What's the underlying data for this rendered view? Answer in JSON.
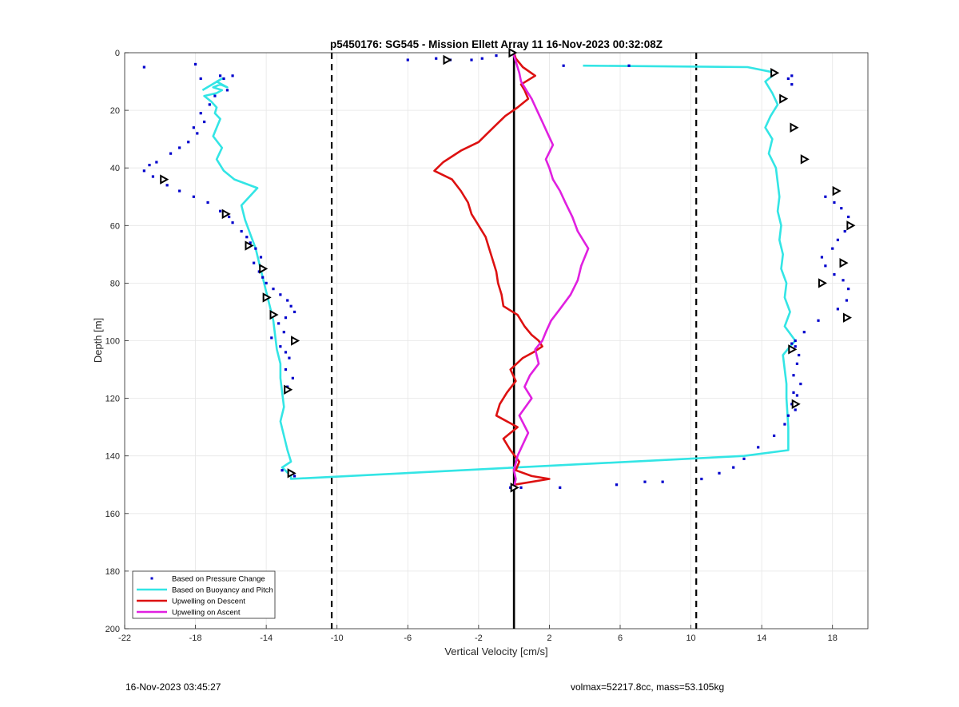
{
  "footer": {
    "timestamp": "16-Nov-2023 03:45:27",
    "volmax_mass": "volmax=52217.8cc, mass=53.105kg"
  },
  "chart_data": {
    "type": "scatter",
    "title": "p5450176: SG545 - Mission Ellett Array 11 16-Nov-2023 00:32:08Z",
    "xlabel": "Vertical Velocity [cm/s]",
    "ylabel": "Depth [m]",
    "xlim": [
      -22,
      20
    ],
    "ylim": [
      0,
      200
    ],
    "y_reversed": true,
    "grid": true,
    "xticks": [
      -22,
      -18,
      -14,
      -10,
      -6,
      -2,
      2,
      6,
      10,
      14,
      18
    ],
    "yticks": [
      0,
      20,
      40,
      60,
      80,
      100,
      120,
      140,
      160,
      180,
      200
    ],
    "legend_location": "bottom-left",
    "legend": [
      {
        "label": "Based on Pressure Change",
        "color": "#0000cc",
        "style": "dots"
      },
      {
        "label": "Based on Buoyancy and Pitch",
        "color": "#33e5e5",
        "style": "line"
      },
      {
        "label": "Upwelling on Descent",
        "color": "#dd1111",
        "style": "line"
      },
      {
        "label": "Upwelling on Ascent",
        "color": "#e020e0",
        "style": "line"
      }
    ],
    "reference_lines": [
      {
        "x": -10.3,
        "style": "dashed",
        "color": "#000000"
      },
      {
        "x": 10.3,
        "style": "dashed",
        "color": "#000000"
      },
      {
        "x": 0,
        "style": "solid",
        "color": "#000000"
      }
    ],
    "series": [
      {
        "name": "Based on Buoyancy and Pitch",
        "color": "#33e5e5",
        "style": "line",
        "x": [
          3.9,
          13.2,
          14.8,
          14.2,
          14.6,
          14.9,
          14.5,
          14.2,
          14.6,
          14.4,
          14.8,
          14.9,
          15.0,
          14.9,
          15.1,
          15.0,
          15.2,
          15.1,
          15.4,
          15.3,
          15.6,
          15.3,
          15.9,
          15.6,
          15.2,
          15.3,
          15.4,
          15.4,
          15.5,
          15.5,
          13.0,
          -12.6,
          -12.6,
          -13.1,
          -12.6,
          -12.8,
          -13.0,
          -13.2,
          -13.0,
          -13.1,
          -13.2,
          -13.2,
          -13.4,
          -13.5,
          -13.6,
          -13.8,
          -14.0,
          -14.2,
          -14.4,
          -14.6,
          -14.9,
          -15.2,
          -15.4,
          -14.5,
          -15.8,
          -16.4,
          -16.8,
          -16.5,
          -17.0,
          -16.8,
          -16.6,
          -16.9,
          -16.8,
          -17.1,
          -17.5,
          -16.8,
          -16.5,
          -17.0,
          -16.6,
          -16.2,
          -16.8,
          -16.5,
          -17.6
        ],
        "y": [
          4.5,
          5.0,
          7,
          10,
          14,
          18,
          22,
          26,
          30,
          35,
          40,
          45,
          50,
          55,
          60,
          65,
          70,
          75,
          80,
          85,
          90,
          95,
          100,
          102,
          105,
          110,
          115,
          120,
          130,
          138,
          140,
          148,
          147,
          144,
          142,
          138,
          133,
          128,
          123,
          118,
          113,
          108,
          103,
          98,
          93,
          88,
          83,
          78,
          73,
          68,
          63,
          58,
          53,
          47,
          44,
          41,
          37,
          33,
          29,
          26,
          23,
          21,
          19,
          17,
          15,
          14,
          13,
          12,
          11,
          12,
          10,
          9,
          13
        ]
      },
      {
        "name": "Upwelling on Descent",
        "color": "#dd1111",
        "style": "line",
        "x": [
          0.0,
          0.1,
          0.5,
          1.2,
          0.4,
          0.6,
          0.8,
          0.2,
          -0.5,
          -1.0,
          -1.5,
          -2.0,
          -3.0,
          -4.0,
          -4.5,
          -3.5,
          -3.0,
          -2.6,
          -2.4,
          -2.0,
          -1.6,
          -1.4,
          -1.2,
          -1.0,
          -0.9,
          -0.7,
          -0.6,
          0.2,
          0.6,
          1.0,
          1.4,
          1.6,
          1.1,
          0.5,
          -0.2,
          0.1,
          -0.4,
          -0.8,
          -1.0,
          0.2,
          -0.6,
          -0.2,
          0.3,
          0.1,
          1.0,
          2.0,
          0.0
        ],
        "y": [
          0,
          2,
          5,
          8,
          11,
          13,
          16,
          19,
          22,
          25,
          28,
          31,
          34,
          38,
          41,
          44,
          48,
          52,
          56,
          60,
          64,
          68,
          72,
          76,
          80,
          84,
          88,
          91,
          95,
          98,
          100,
          102,
          104,
          106,
          110,
          114,
          118,
          122,
          126,
          130,
          134,
          138,
          142,
          145,
          147,
          148,
          150
        ]
      },
      {
        "name": "Upwelling on Ascent",
        "color": "#e020e0",
        "style": "line",
        "x": [
          0.0,
          0.1,
          0.0,
          0.2,
          0.8,
          0.3,
          1.0,
          0.6,
          0.9,
          1.4,
          1.2,
          1.6,
          1.8,
          2.1,
          2.6,
          3.2,
          3.6,
          3.8,
          4.2,
          3.6,
          3.3,
          2.9,
          2.6,
          2.2,
          2.0,
          1.8,
          2.2,
          1.9,
          1.6,
          1.3,
          1.0,
          0.7,
          0.4,
          0.3,
          0.2,
          0.1,
          0.0,
          0.0
        ],
        "y": [
          151,
          148,
          145,
          140,
          132,
          126,
          120,
          116,
          112,
          108,
          103,
          100,
          97,
          93,
          89,
          84,
          79,
          74,
          68,
          62,
          57,
          52,
          48,
          44,
          40,
          37,
          32,
          28,
          24,
          20,
          16,
          13,
          10,
          7,
          5,
          3,
          1,
          0
        ]
      },
      {
        "name": "Based on Pressure Change",
        "color": "#0000cc",
        "style": "dots",
        "x": [
          -20.9,
          -18.0,
          -17.7,
          -16.6,
          -16.4,
          -15.9,
          -16.2,
          -16.9,
          -17.2,
          -17.7,
          -17.5,
          -18.1,
          -17.9,
          -18.4,
          -18.9,
          -19.4,
          -20.2,
          -20.6,
          -20.9,
          -20.4,
          -19.6,
          -18.9,
          -18.1,
          -17.3,
          -16.6,
          -16.1,
          -15.9,
          -15.4,
          -15.1,
          -14.9,
          -14.6,
          -14.3,
          -14.7,
          -14.4,
          -14.2,
          -14.0,
          -13.6,
          -13.2,
          -12.8,
          -12.6,
          -12.4,
          -12.9,
          -13.3,
          -13.0,
          -13.7,
          -13.2,
          -12.9,
          -12.7,
          -12.9,
          -12.5,
          -12.8,
          -0.2,
          0.4,
          2.6,
          5.8,
          7.4,
          8.4,
          10.6,
          11.6,
          12.4,
          13.0,
          13.8,
          14.7,
          15.3,
          15.5,
          15.8,
          16.0,
          16.2,
          15.8,
          16.0,
          16.1,
          15.9,
          15.7,
          17.6,
          18.1,
          18.5,
          18.9,
          19.0,
          18.7,
          18.3,
          18.0,
          17.4,
          17.6,
          18.1,
          18.6,
          18.9,
          18.8,
          18.3,
          17.2,
          16.4,
          15.9,
          15.7,
          15.6,
          15.8,
          15.7,
          15.9,
          15.5,
          15.7,
          6.5,
          2.8,
          -1.0,
          -1.8,
          -2.4,
          -3.6,
          -4.4,
          -6.0,
          -12.4,
          -13.1
        ],
        "y": [
          5,
          4,
          9,
          8,
          9,
          8,
          13,
          15,
          18,
          21,
          24,
          26,
          28,
          31,
          33,
          35,
          38,
          39,
          41,
          43,
          46,
          48,
          50,
          52,
          55,
          57,
          59,
          62,
          64,
          66,
          68,
          71,
          73,
          76,
          78,
          80,
          82,
          84,
          86,
          88,
          90,
          92,
          94,
          97,
          99,
          102,
          104,
          106,
          110,
          113,
          116,
          151,
          151,
          151,
          150,
          149,
          149,
          148,
          146,
          144,
          141,
          137,
          133,
          129,
          126,
          122,
          119,
          115,
          112,
          108,
          105,
          102,
          8,
          50,
          52,
          54,
          57,
          60,
          62,
          65,
          68,
          71,
          74,
          77,
          79,
          82,
          86,
          89,
          93,
          97,
          100,
          101,
          103,
          118,
          122,
          124,
          9,
          11,
          4.5,
          4.5,
          1,
          2,
          2.5,
          2.5,
          2.0,
          2.5,
          147,
          145
        ]
      }
    ],
    "markers": {
      "style": "open-triangle",
      "color": "#000000",
      "x": [
        -0.1,
        -3.8,
        14.7,
        15.2,
        15.8,
        16.4,
        18.2,
        19.0,
        18.6,
        17.4,
        18.8,
        15.7,
        15.9,
        -19.8,
        -16.3,
        -15.0,
        -14.2,
        -14.0,
        -13.6,
        -12.4,
        -12.8,
        -12.6,
        0.0
      ],
      "y": [
        0,
        2.5,
        7,
        16,
        26,
        37,
        48,
        60,
        73,
        80,
        92,
        103,
        122,
        44,
        56,
        67,
        75,
        85,
        91,
        100,
        117,
        146,
        151
      ]
    }
  }
}
